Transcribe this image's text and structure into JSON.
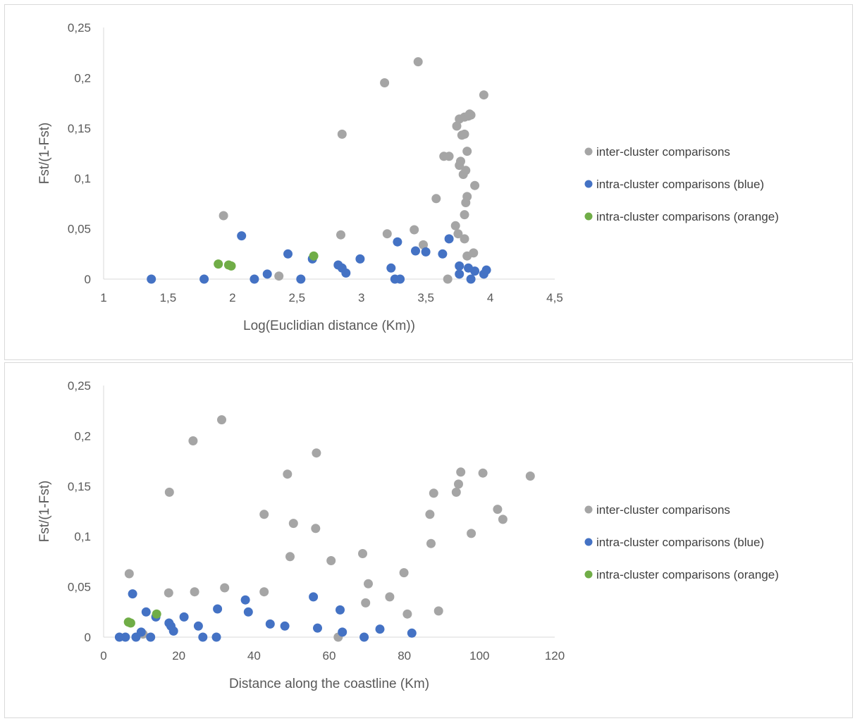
{
  "chart_data": [
    {
      "type": "scatter",
      "title": "",
      "xlabel": "Log(Euclidian distance (Km))",
      "ylabel": "Fst/(1-Fst)",
      "xlim": [
        1,
        4.5
      ],
      "ylim": [
        0,
        0.25
      ],
      "xticks": [
        1,
        1.5,
        2,
        2.5,
        3,
        3.5,
        4,
        4.5
      ],
      "xtick_labels": [
        "1",
        "1,5",
        "2",
        "2,5",
        "3",
        "3,5",
        "4",
        "4,5"
      ],
      "yticks": [
        0,
        0.05,
        0.1,
        0.15,
        0.2,
        0.25
      ],
      "ytick_labels": [
        "0",
        "0,05",
        "0,1",
        "0,15",
        "0,2",
        "0,25"
      ],
      "grid": false,
      "legend_position": "right",
      "series": [
        {
          "name": "inter-cluster comparisons",
          "color": "#a5a5a5",
          "points": [
            [
              1.93,
              0.063
            ],
            [
              2.36,
              0.003
            ],
            [
              2.84,
              0.044
            ],
            [
              2.85,
              0.144
            ],
            [
              3.18,
              0.195
            ],
            [
              3.2,
              0.045
            ],
            [
              3.41,
              0.049
            ],
            [
              3.44,
              0.216
            ],
            [
              3.48,
              0.034
            ],
            [
              3.58,
              0.08
            ],
            [
              3.64,
              0.122
            ],
            [
              3.67,
              0.0
            ],
            [
              3.68,
              0.122
            ],
            [
              3.73,
              0.053
            ],
            [
              3.74,
              0.152
            ],
            [
              3.75,
              0.045
            ],
            [
              3.76,
              0.159
            ],
            [
              3.76,
              0.113
            ],
            [
              3.77,
              0.117
            ],
            [
              3.78,
              0.143
            ],
            [
              3.79,
              0.104
            ],
            [
              3.8,
              0.064
            ],
            [
              3.8,
              0.04
            ],
            [
              3.8,
              0.144
            ],
            [
              3.8,
              0.161
            ],
            [
              3.81,
              0.108
            ],
            [
              3.81,
              0.076
            ],
            [
              3.82,
              0.127
            ],
            [
              3.82,
              0.082
            ],
            [
              3.82,
              0.023
            ],
            [
              3.83,
              0.162
            ],
            [
              3.84,
              0.164
            ],
            [
              3.85,
              0.163
            ],
            [
              3.87,
              0.026
            ],
            [
              3.88,
              0.093
            ],
            [
              3.95,
              0.183
            ]
          ]
        },
        {
          "name": "intra-cluster comparisons (blue)",
          "color": "#4472c4",
          "points": [
            [
              1.37,
              0.0
            ],
            [
              1.78,
              0.0
            ],
            [
              2.07,
              0.043
            ],
            [
              2.17,
              0.0
            ],
            [
              2.27,
              0.005
            ],
            [
              2.43,
              0.025
            ],
            [
              2.53,
              0.0
            ],
            [
              2.62,
              0.02
            ],
            [
              2.82,
              0.014
            ],
            [
              2.85,
              0.011
            ],
            [
              2.88,
              0.006
            ],
            [
              2.99,
              0.02
            ],
            [
              3.23,
              0.011
            ],
            [
              3.26,
              0.0
            ],
            [
              3.28,
              0.037
            ],
            [
              3.3,
              0.0
            ],
            [
              3.42,
              0.028
            ],
            [
              3.5,
              0.027
            ],
            [
              3.63,
              0.025
            ],
            [
              3.68,
              0.04
            ],
            [
              3.76,
              0.013
            ],
            [
              3.76,
              0.005
            ],
            [
              3.83,
              0.011
            ],
            [
              3.85,
              0.0
            ],
            [
              3.88,
              0.008
            ],
            [
              3.95,
              0.005
            ],
            [
              3.97,
              0.009
            ]
          ]
        },
        {
          "name": "intra-cluster comparisons (orange)",
          "color": "#70ad47",
          "points": [
            [
              1.89,
              0.015
            ],
            [
              1.97,
              0.014
            ],
            [
              1.99,
              0.013
            ],
            [
              2.63,
              0.023
            ]
          ]
        }
      ]
    },
    {
      "type": "scatter",
      "title": "",
      "xlabel": "Distance along the coastline (Km)",
      "ylabel": "Fst/(1-Fst)",
      "xlim": [
        0,
        120
      ],
      "ylim": [
        0,
        0.25
      ],
      "xticks": [
        0,
        20,
        40,
        60,
        80,
        100,
        120
      ],
      "xtick_labels": [
        "0",
        "20",
        "40",
        "60",
        "80",
        "100",
        "120"
      ],
      "yticks": [
        0,
        0.05,
        0.1,
        0.15,
        0.2,
        0.25
      ],
      "ytick_labels": [
        "0",
        "0,05",
        "0,1",
        "0,15",
        "0,2",
        "0,25"
      ],
      "grid": false,
      "legend_position": "right",
      "series": [
        {
          "name": "inter-cluster comparisons",
          "color": "#a5a5a5",
          "points": [
            [
              6.8,
              0.063
            ],
            [
              10.5,
              0.003
            ],
            [
              17.3,
              0.044
            ],
            [
              17.5,
              0.144
            ],
            [
              23.8,
              0.195
            ],
            [
              24.2,
              0.045
            ],
            [
              31.4,
              0.216
            ],
            [
              32.2,
              0.049
            ],
            [
              42.7,
              0.122
            ],
            [
              42.7,
              0.045
            ],
            [
              48.9,
              0.162
            ],
            [
              49.6,
              0.08
            ],
            [
              50.5,
              0.113
            ],
            [
              56.4,
              0.108
            ],
            [
              56.6,
              0.183
            ],
            [
              60.5,
              0.076
            ],
            [
              62.4,
              0.0
            ],
            [
              68.9,
              0.083
            ],
            [
              69.7,
              0.034
            ],
            [
              70.4,
              0.053
            ],
            [
              76.1,
              0.04
            ],
            [
              79.9,
              0.064
            ],
            [
              80.8,
              0.023
            ],
            [
              86.8,
              0.122
            ],
            [
              87.1,
              0.093
            ],
            [
              87.8,
              0.143
            ],
            [
              89.1,
              0.026
            ],
            [
              93.8,
              0.144
            ],
            [
              94.4,
              0.152
            ],
            [
              95.0,
              0.164
            ],
            [
              97.8,
              0.103
            ],
            [
              100.9,
              0.163
            ],
            [
              104.8,
              0.127
            ],
            [
              106.2,
              0.117
            ],
            [
              113.5,
              0.16
            ]
          ]
        },
        {
          "name": "intra-cluster comparisons (blue)",
          "color": "#4472c4",
          "points": [
            [
              4.2,
              0.0
            ],
            [
              5.8,
              0.0
            ],
            [
              7.7,
              0.043
            ],
            [
              8.6,
              0.0
            ],
            [
              10.0,
              0.005
            ],
            [
              11.3,
              0.025
            ],
            [
              12.5,
              0.0
            ],
            [
              13.9,
              0.02
            ],
            [
              17.4,
              0.014
            ],
            [
              17.9,
              0.011
            ],
            [
              18.6,
              0.006
            ],
            [
              21.4,
              0.02
            ],
            [
              25.2,
              0.011
            ],
            [
              26.4,
              0.0
            ],
            [
              30.0,
              0.0
            ],
            [
              30.3,
              0.028
            ],
            [
              37.7,
              0.037
            ],
            [
              38.5,
              0.025
            ],
            [
              44.3,
              0.013
            ],
            [
              48.2,
              0.011
            ],
            [
              55.8,
              0.04
            ],
            [
              56.9,
              0.009
            ],
            [
              62.9,
              0.027
            ],
            [
              63.5,
              0.005
            ],
            [
              69.3,
              0.0
            ],
            [
              73.5,
              0.008
            ],
            [
              82.0,
              0.004
            ]
          ]
        },
        {
          "name": "intra-cluster comparisons (orange)",
          "color": "#70ad47",
          "points": [
            [
              6.6,
              0.015
            ],
            [
              7.2,
              0.014
            ],
            [
              14.1,
              0.023
            ]
          ]
        }
      ]
    }
  ]
}
